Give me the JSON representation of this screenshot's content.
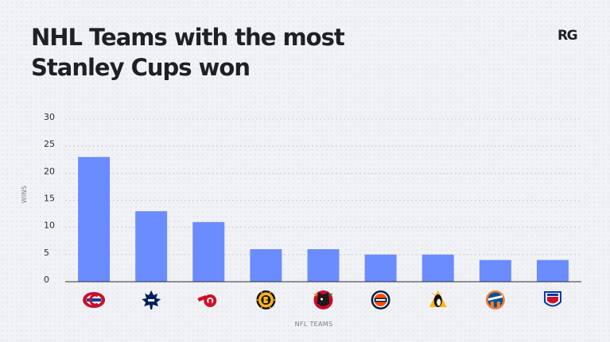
{
  "header": {
    "title_line1": "NHL Teams with the most",
    "title_line2": "Stanley Cups won",
    "brand": "RG"
  },
  "chart_data": {
    "type": "bar",
    "title": "NHL Teams with the most Stanley Cups won",
    "xlabel": "NFL TEAMS",
    "ylabel": "WINS",
    "ylim": [
      0,
      30
    ],
    "yticks": [
      0,
      5,
      10,
      15,
      20,
      25,
      30
    ],
    "grid": true,
    "bar_color": "#6b8cff",
    "categories": [
      "canadiens-logo",
      "maple-leafs-logo",
      "red-wings-logo",
      "bruins-logo",
      "blackhawks-logo",
      "oilers-logo",
      "penguins-logo",
      "islanders-logo",
      "rangers-logo"
    ],
    "values": [
      23,
      13,
      11,
      6,
      6,
      5,
      5,
      4,
      4
    ]
  }
}
